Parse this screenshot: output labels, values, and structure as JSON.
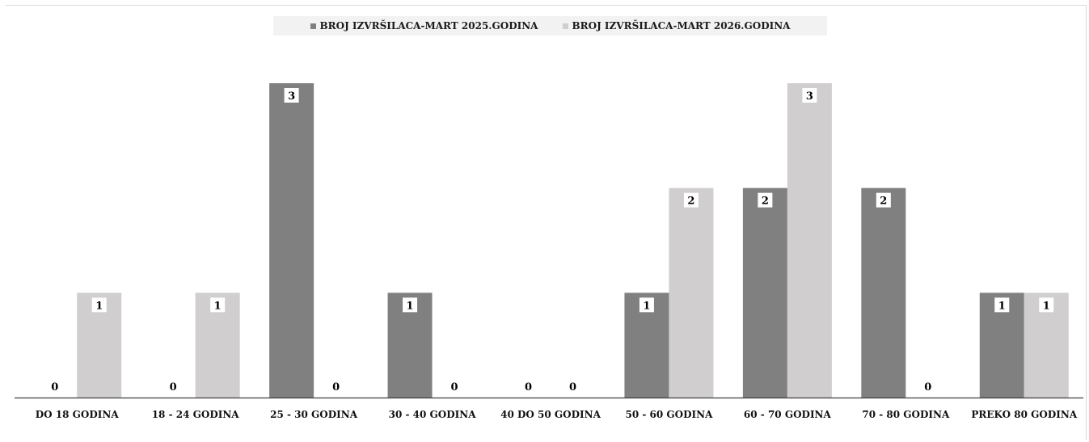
{
  "chart_data": {
    "type": "bar",
    "categories": [
      "DO 18 GODINA",
      "18 - 24 GODINA",
      "25 - 30 GODINA",
      "30 - 40 GODINA",
      "40 DO 50 GODINA",
      "50 - 60 GODINA",
      "60 - 70 GODINA",
      "70 - 80 GODINA",
      "PREKO 80 GODINA"
    ],
    "series": [
      {
        "name": "BROJ IZVRŠILACA-MART 2025.GODINA",
        "values": [
          0,
          0,
          3,
          1,
          0,
          1,
          2,
          2,
          1
        ],
        "color": "#808080"
      },
      {
        "name": "BROJ IZVRŠILACA-MART  2026.GODINA",
        "values": [
          1,
          1,
          0,
          0,
          0,
          2,
          3,
          0,
          1
        ],
        "color": "#d0cece"
      }
    ],
    "title": "",
    "xlabel": "",
    "ylabel": "",
    "ylim": [
      0,
      3
    ],
    "grid": false,
    "legend_position": "top"
  }
}
